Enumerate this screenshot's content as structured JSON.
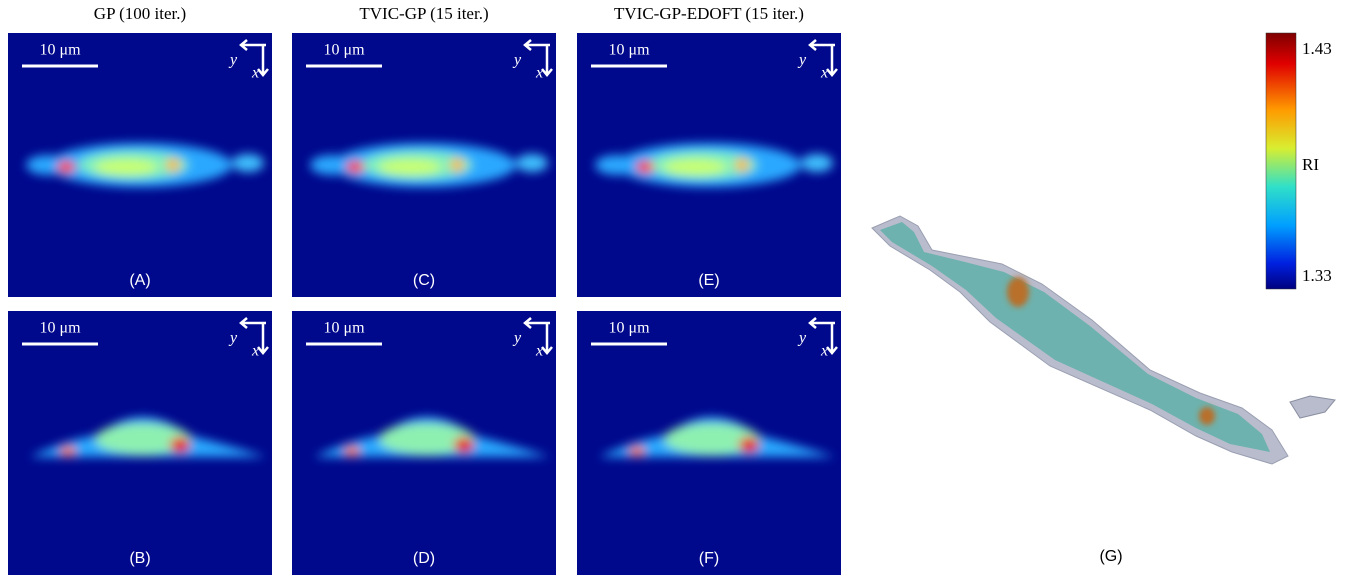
{
  "columns": [
    {
      "title": "GP (100 iter.)"
    },
    {
      "title": "TVIC-GP (15 iter.)"
    },
    {
      "title": "TVIC-GP-EDOFT (15 iter.)"
    }
  ],
  "panels": [
    {
      "label": "(A)",
      "scale_bar": "10 μm",
      "axis_y": "y",
      "axis_x": "x"
    },
    {
      "label": "(B)",
      "scale_bar": "10 μm",
      "axis_y": "y",
      "axis_x": "x"
    },
    {
      "label": "(C)",
      "scale_bar": "10 μm",
      "axis_y": "y",
      "axis_x": "x"
    },
    {
      "label": "(D)",
      "scale_bar": "10 μm",
      "axis_y": "y",
      "axis_x": "x"
    },
    {
      "label": "(E)",
      "scale_bar": "10 μm",
      "axis_y": "y",
      "axis_x": "x"
    },
    {
      "label": "(F)",
      "scale_bar": "10 μm",
      "axis_y": "y",
      "axis_x": "x"
    }
  ],
  "render": {
    "label": "(G)"
  },
  "colorbar": {
    "max": 1.43,
    "title": "RI",
    "min": 1.33
  }
}
